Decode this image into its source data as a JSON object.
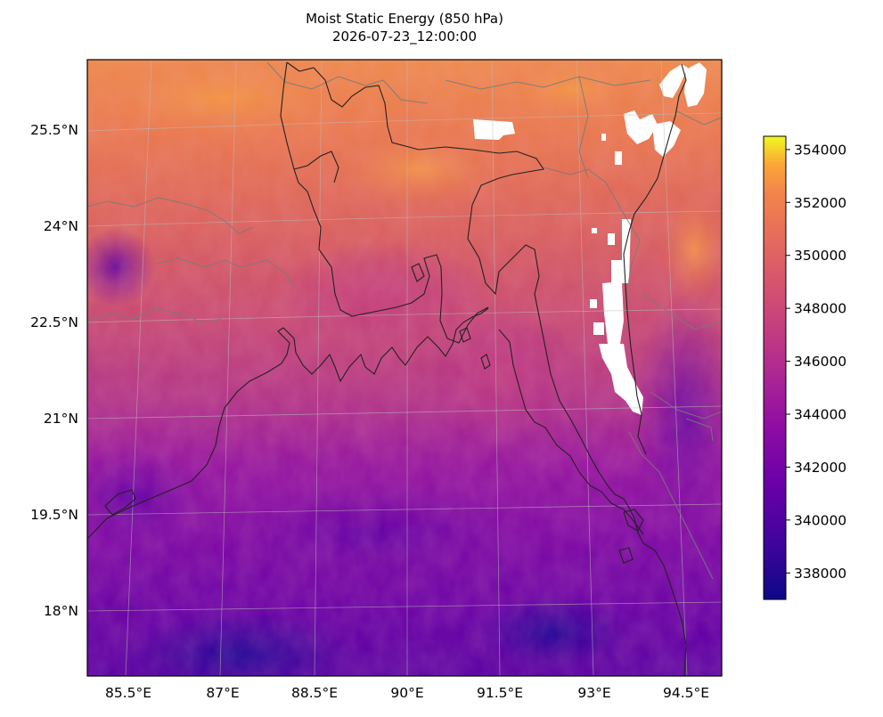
{
  "title": "Moist Static Energy (850 hPa)",
  "subtitle": "2026-07-23_12:00:00",
  "map": {
    "lon_range": [
      84.5,
      95.0
    ],
    "lat_range": [
      16.9,
      26.6
    ],
    "lon_ticks": [
      85.5,
      87,
      88.5,
      90,
      91.5,
      93,
      94.5
    ],
    "lat_ticks": [
      25.5,
      24,
      22.5,
      21,
      19.5,
      18
    ],
    "lon_tick_labels": [
      "85.5°E",
      "87°E",
      "88.5°E",
      "90°E",
      "91.5°E",
      "93°E",
      "94.5°E"
    ],
    "lat_tick_labels": [
      "25.5°N",
      "24°N",
      "22.5°N",
      "21°N",
      "19.5°N",
      "18°N"
    ],
    "gridlines": true,
    "field": "moist static energy",
    "level": "850 hPa"
  },
  "colorbar": {
    "colormap": "plasma",
    "min": 337000,
    "max": 354500,
    "ticks": [
      354000,
      352000,
      350000,
      348000,
      346000,
      344000,
      342000,
      340000,
      338000
    ],
    "tick_labels": [
      "354000",
      "352000",
      "350000",
      "348000",
      "346000",
      "344000",
      "342000",
      "340000",
      "338000"
    ]
  },
  "colors": {
    "coastline": "#222222",
    "borders": "#7a7a7a",
    "gridline": "#bbbbbb",
    "missing": "#ffffff"
  }
}
